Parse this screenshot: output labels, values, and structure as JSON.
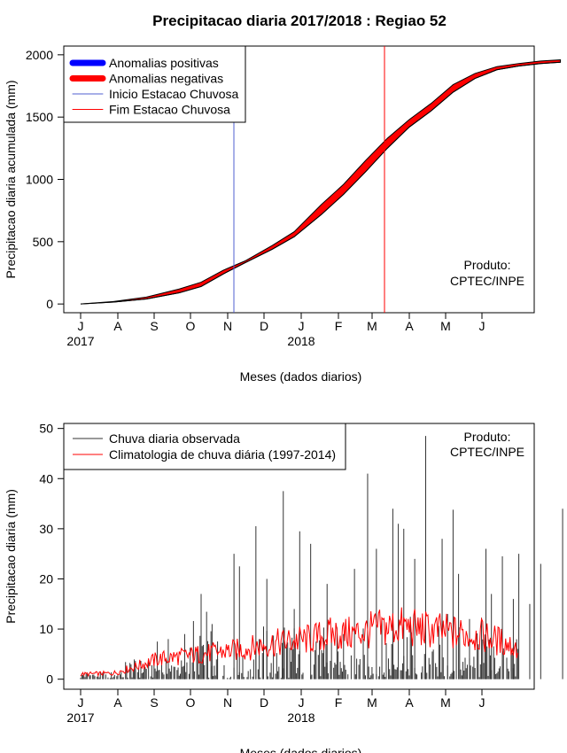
{
  "title": "Precipitacao diaria 2017/2018 : Regiao 52",
  "months": [
    "J",
    "A",
    "S",
    "O",
    "N",
    "D",
    "J",
    "F",
    "M",
    "A",
    "M",
    "J"
  ],
  "years": [
    "2017",
    "2018"
  ],
  "producer": [
    "Produto:",
    "CPTEC/INPE"
  ],
  "colors": {
    "positive": "#0000ff",
    "negative": "#ff0000",
    "clim": "#ff0000",
    "obs": "#333333"
  },
  "chart_data": [
    {
      "type": "area",
      "title": "Precipitacao diaria 2017/2018 : Regiao 52",
      "xlabel": "Meses (dados diarios)",
      "ylabel": "Precipitacao diaria acumulada (mm)",
      "ylim": [
        -70,
        2070
      ],
      "yticks": [
        0,
        500,
        1000,
        1500,
        2000
      ],
      "xticks": [
        "J",
        "A",
        "S",
        "O",
        "N",
        "D",
        "J",
        "F",
        "M",
        "A",
        "M",
        "J"
      ],
      "legend": {
        "position": "top-left",
        "entries": [
          "Anomalias positivas",
          "Anomalias negativas",
          "Inicio Estacao Chuvosa",
          "Fim Estacao Chuvosa"
        ]
      },
      "series": [
        {
          "name": "Anomalias positivas",
          "values": []
        },
        {
          "name": "Anomalias negativas",
          "observed_cumulative": [
            [
              0,
              0
            ],
            [
              30,
              15
            ],
            [
              60,
              40
            ],
            [
              90,
              90
            ],
            [
              110,
              140
            ],
            [
              130,
              240
            ],
            [
              150,
              330
            ],
            [
              175,
              440
            ],
            [
              195,
              540
            ],
            [
              220,
              720
            ],
            [
              240,
              880
            ],
            [
              260,
              1060
            ],
            [
              280,
              1250
            ],
            [
              300,
              1420
            ],
            [
              320,
              1550
            ],
            [
              340,
              1700
            ],
            [
              360,
              1810
            ],
            [
              380,
              1880
            ],
            [
              400,
              1910
            ],
            [
              420,
              1930
            ],
            [
              438,
              1940
            ]
          ],
          "climatology_cumulative": [
            [
              0,
              0
            ],
            [
              30,
              20
            ],
            [
              60,
              55
            ],
            [
              90,
              120
            ],
            [
              110,
              175
            ],
            [
              130,
              270
            ],
            [
              150,
              345
            ],
            [
              175,
              470
            ],
            [
              195,
              580
            ],
            [
              220,
              800
            ],
            [
              240,
              960
            ],
            [
              260,
              1150
            ],
            [
              280,
              1330
            ],
            [
              300,
              1480
            ],
            [
              320,
              1610
            ],
            [
              340,
              1760
            ],
            [
              360,
              1850
            ],
            [
              380,
              1905
            ],
            [
              400,
              1930
            ],
            [
              420,
              1950
            ],
            [
              438,
              1960
            ]
          ]
        }
      ],
      "verticals": [
        {
          "name": "Inicio Estacao Chuvosa",
          "month": "N",
          "color": "#4f5fd0"
        },
        {
          "name": "Fim Estacao Chuvosa",
          "month": "M",
          "color": "#ff0000"
        }
      ]
    },
    {
      "type": "bar",
      "xlabel": "Meses (dados diarios)",
      "ylabel": "Precipitacao diaria (mm)",
      "ylim": [
        -2,
        51
      ],
      "yticks": [
        0,
        10,
        20,
        30,
        40,
        50
      ],
      "xticks": [
        "J",
        "A",
        "S",
        "O",
        "N",
        "D",
        "J",
        "F",
        "M",
        "A",
        "M",
        "J"
      ],
      "legend": {
        "position": "top-left",
        "entries": [
          "Chuva diaria observada",
          "Climatologia de chuva diária (1997-2014)"
        ]
      },
      "series": [
        {
          "name": "Chuva diaria observada",
          "peaks": [
            [
              50,
              2
            ],
            [
              70,
              7.5
            ],
            [
              80,
              8
            ],
            [
              95,
              9
            ],
            [
              110,
              17
            ],
            [
              120,
              11
            ],
            [
              125,
              4
            ],
            [
              140,
              25
            ],
            [
              145,
              22.5
            ],
            [
              160,
              30.5
            ],
            [
              170,
              20
            ],
            [
              185,
              37.5
            ],
            [
              195,
              14
            ],
            [
              200,
              29.5
            ],
            [
              210,
              27
            ],
            [
              225,
              19
            ],
            [
              240,
              9
            ],
            [
              250,
              22
            ],
            [
              262,
              41
            ],
            [
              270,
              26
            ],
            [
              275,
              12
            ],
            [
              285,
              34
            ],
            [
              290,
              31
            ],
            [
              295,
              30
            ],
            [
              305,
              24
            ],
            [
              315,
              48.5
            ],
            [
              330,
              28
            ],
            [
              335,
              13
            ],
            [
              340,
              33.8
            ],
            [
              345,
              21
            ],
            [
              355,
              12
            ],
            [
              370,
              26
            ],
            [
              375,
              17
            ],
            [
              385,
              24.5
            ],
            [
              395,
              16
            ],
            [
              400,
              25
            ],
            [
              410,
              15
            ],
            [
              420,
              23
            ],
            [
              440,
              34
            ]
          ]
        },
        {
          "name": "Climatologia de chuva diária (1997-2014)",
          "curve": [
            [
              0,
              1
            ],
            [
              30,
              1.2
            ],
            [
              50,
              2.5
            ],
            [
              70,
              4
            ],
            [
              90,
              4.5
            ],
            [
              110,
              5
            ],
            [
              130,
              5.5
            ],
            [
              150,
              6
            ],
            [
              170,
              7
            ],
            [
              190,
              7.5
            ],
            [
              210,
              8
            ],
            [
              230,
              9
            ],
            [
              250,
              9
            ],
            [
              270,
              10
            ],
            [
              290,
              10.5
            ],
            [
              310,
              10
            ],
            [
              330,
              9.5
            ],
            [
              350,
              9
            ],
            [
              370,
              8.5
            ],
            [
              390,
              7
            ],
            [
              410,
              5
            ],
            [
              425,
              3
            ],
            [
              440,
              1.5
            ],
            [
              480,
              1
            ]
          ]
        }
      ]
    }
  ]
}
